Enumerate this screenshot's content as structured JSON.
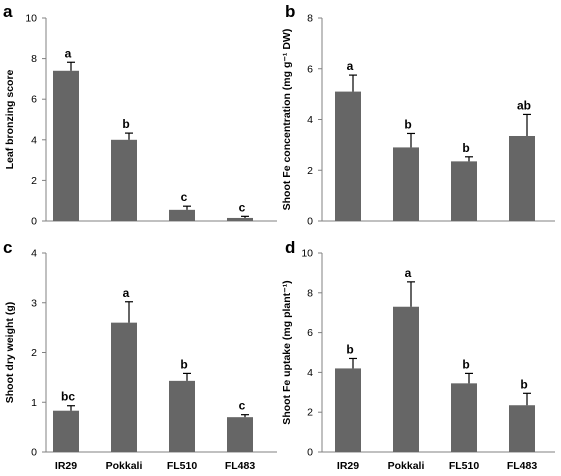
{
  "colors": {
    "bar": "#666666",
    "axis": "#808080",
    "text": "#000000"
  },
  "chart_data": [
    {
      "panel": "a",
      "type": "bar",
      "categories": [
        "IR29",
        "Pokkali",
        "FL510",
        "FL483"
      ],
      "values": [
        7.4,
        4.0,
        0.55,
        0.15
      ],
      "errors": [
        0.42,
        0.33,
        0.18,
        0.08
      ],
      "significance": [
        "a",
        "b",
        "c",
        "c"
      ],
      "ylabel": "Leaf bronzing score",
      "ylim": [
        0,
        10
      ],
      "yticks": [
        0,
        2,
        4,
        6,
        8,
        10
      ],
      "show_categories": false,
      "grid": false
    },
    {
      "panel": "b",
      "type": "bar",
      "categories": [
        "IR29",
        "Pokkali",
        "FL510",
        "FL483"
      ],
      "values": [
        5.1,
        2.9,
        2.35,
        3.35
      ],
      "errors": [
        0.65,
        0.55,
        0.18,
        0.85
      ],
      "significance": [
        "a",
        "b",
        "b",
        "ab"
      ],
      "ylabel": "Shoot Fe concentration (mg g⁻¹ DW)",
      "ylim": [
        0,
        8
      ],
      "yticks": [
        0,
        2,
        4,
        6,
        8
      ],
      "show_categories": false,
      "grid": false
    },
    {
      "panel": "c",
      "type": "bar",
      "categories": [
        "IR29",
        "Pokkali",
        "FL510",
        "FL483"
      ],
      "values": [
        0.83,
        2.6,
        1.43,
        0.7
      ],
      "errors": [
        0.1,
        0.42,
        0.15,
        0.05
      ],
      "significance": [
        "bc",
        "a",
        "b",
        "c"
      ],
      "ylabel": "Shoot dry weight (g)",
      "ylim": [
        0,
        4
      ],
      "yticks": [
        0,
        1,
        2,
        3,
        4
      ],
      "show_categories": true,
      "grid": false
    },
    {
      "panel": "d",
      "type": "bar",
      "categories": [
        "IR29",
        "Pokkali",
        "FL510",
        "FL483"
      ],
      "values": [
        4.2,
        7.3,
        3.45,
        2.35
      ],
      "errors": [
        0.5,
        1.25,
        0.5,
        0.6
      ],
      "significance": [
        "b",
        "a",
        "b",
        "b"
      ],
      "ylabel": "Shoot Fe uptake (mg plant⁻¹)",
      "ylim": [
        0,
        10
      ],
      "yticks": [
        0,
        2,
        4,
        6,
        8,
        10
      ],
      "show_categories": true,
      "grid": false
    }
  ]
}
